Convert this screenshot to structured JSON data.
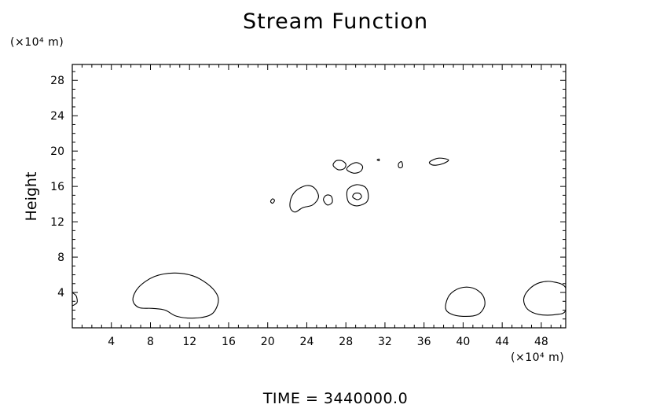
{
  "chart_data": {
    "type": "contour",
    "title": "Stream Function",
    "ylabel": "Height",
    "y_unit": "(×10⁴ m)",
    "x_unit": "(×10⁴ m)",
    "xlim": [
      0,
      50.5
    ],
    "ylim": [
      0,
      29.8
    ],
    "xticks": [
      4,
      8,
      12,
      16,
      20,
      24,
      28,
      32,
      36,
      40,
      44,
      48
    ],
    "yticks": [
      4,
      8,
      12,
      16,
      20,
      24,
      28
    ],
    "grid": false,
    "footer": "TIME = 3440000.0",
    "contours": [
      {
        "points": [
          [
            0,
            4.0
          ],
          [
            0.4,
            3.6
          ],
          [
            0.5,
            2.9
          ],
          [
            0.2,
            2.6
          ],
          [
            0,
            2.5
          ]
        ],
        "closed": false
      },
      {
        "points": [
          [
            6.2,
            3.2
          ],
          [
            6.8,
            4.6
          ],
          [
            8.4,
            5.8
          ],
          [
            10.4,
            6.2
          ],
          [
            12.3,
            5.9
          ],
          [
            13.8,
            5.0
          ],
          [
            14.8,
            3.8
          ],
          [
            14.9,
            2.7
          ],
          [
            14.2,
            1.5
          ],
          [
            12.5,
            1.1
          ],
          [
            10.7,
            1.3
          ],
          [
            9.5,
            2.0
          ],
          [
            8.2,
            2.2
          ],
          [
            6.8,
            2.3
          ]
        ],
        "closed": true
      },
      {
        "points": [
          [
            38.2,
            2.3
          ],
          [
            38.6,
            3.7
          ],
          [
            39.7,
            4.5
          ],
          [
            41.0,
            4.5
          ],
          [
            42.0,
            3.7
          ],
          [
            42.2,
            2.5
          ],
          [
            41.5,
            1.5
          ],
          [
            40.0,
            1.3
          ],
          [
            38.7,
            1.6
          ]
        ],
        "closed": true
      },
      {
        "points": [
          [
            46.2,
            3.2
          ],
          [
            46.7,
            4.3
          ],
          [
            47.8,
            5.1
          ],
          [
            49.2,
            5.2
          ],
          [
            50.5,
            4.5
          ],
          [
            50.5,
            2.0
          ],
          [
            49.5,
            1.5
          ],
          [
            47.8,
            1.5
          ],
          [
            46.6,
            2.1
          ]
        ],
        "closed": true
      },
      {
        "points": [
          [
            20.3,
            14.3
          ],
          [
            20.5,
            14.6
          ],
          [
            20.7,
            14.4
          ],
          [
            20.5,
            14.1
          ]
        ],
        "closed": true
      },
      {
        "points": [
          [
            22.3,
            13.6
          ],
          [
            22.4,
            14.7
          ],
          [
            23.0,
            15.6
          ],
          [
            24.0,
            16.1
          ],
          [
            24.8,
            15.8
          ],
          [
            25.2,
            14.8
          ],
          [
            24.6,
            13.9
          ],
          [
            23.6,
            13.6
          ],
          [
            22.8,
            13.1
          ]
        ],
        "closed": true
      },
      {
        "points": [
          [
            25.7,
            14.5
          ],
          [
            26.0,
            15.0
          ],
          [
            26.5,
            14.9
          ],
          [
            26.6,
            14.2
          ],
          [
            26.1,
            13.9
          ]
        ],
        "closed": true
      },
      {
        "points": [
          [
            28.1,
            15.2
          ],
          [
            28.3,
            15.8
          ],
          [
            29.1,
            16.2
          ],
          [
            30.0,
            15.9
          ],
          [
            30.3,
            15.0
          ],
          [
            30.1,
            14.2
          ],
          [
            29.1,
            13.8
          ],
          [
            28.3,
            14.2
          ]
        ],
        "closed": true
      },
      {
        "points": [
          [
            28.7,
            14.8
          ],
          [
            28.9,
            15.2
          ],
          [
            29.4,
            15.2
          ],
          [
            29.6,
            14.8
          ],
          [
            29.2,
            14.5
          ]
        ],
        "closed": true
      },
      {
        "points": [
          [
            26.7,
            18.4
          ],
          [
            27.0,
            18.9
          ],
          [
            27.6,
            18.9
          ],
          [
            28.0,
            18.5
          ],
          [
            27.8,
            18.0
          ],
          [
            27.2,
            17.9
          ]
        ],
        "closed": true
      },
      {
        "points": [
          [
            28.1,
            17.9
          ],
          [
            28.4,
            18.4
          ],
          [
            29.1,
            18.7
          ],
          [
            29.7,
            18.3
          ],
          [
            29.5,
            17.7
          ],
          [
            28.8,
            17.5
          ]
        ],
        "closed": true
      },
      {
        "points": [
          [
            31.2,
            19.0
          ],
          [
            31.4,
            19.1
          ],
          [
            31.4,
            18.9
          ]
        ],
        "closed": true
      },
      {
        "points": [
          [
            33.4,
            18.6
          ],
          [
            33.7,
            18.8
          ],
          [
            33.8,
            18.3
          ],
          [
            33.6,
            18.1
          ],
          [
            33.4,
            18.2
          ]
        ],
        "closed": true
      },
      {
        "points": [
          [
            36.6,
            18.8
          ],
          [
            37.5,
            19.2
          ],
          [
            38.5,
            19.0
          ],
          [
            38.0,
            18.6
          ],
          [
            37.2,
            18.4
          ],
          [
            36.7,
            18.5
          ]
        ],
        "closed": true
      }
    ]
  }
}
